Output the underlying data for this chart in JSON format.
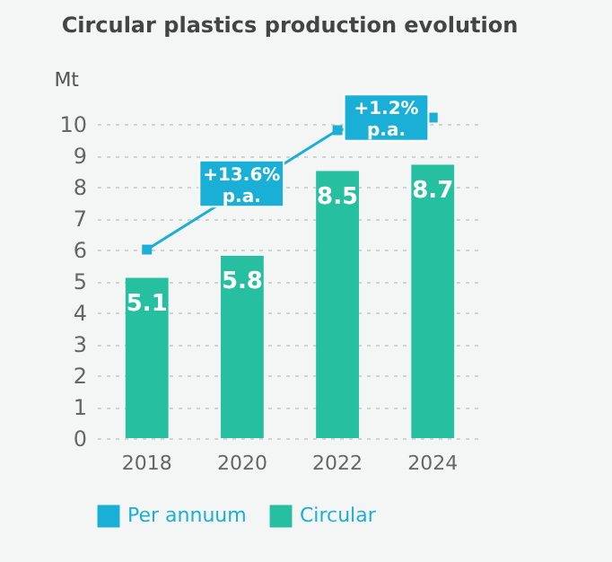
{
  "chart_data": {
    "type": "bar",
    "title": "Circular plastics production evolution",
    "ylabel": "Mt",
    "categories": [
      "2018",
      "2020",
      "2022",
      "2024"
    ],
    "series": [
      {
        "name": "Per annuum",
        "type": "line",
        "color": "#1aafd6",
        "values": [
          6.0,
          null,
          9.8,
          10.2
        ]
      },
      {
        "name": "Circular",
        "color": "#26bfa0",
        "values": [
          5.1,
          5.8,
          8.5,
          8.7
        ],
        "value_labels": [
          "5.1",
          "5.8",
          "8.5",
          "8.7"
        ]
      }
    ],
    "annotations": [
      "+13.6%\np.a.",
      "+1.2%\np.a."
    ],
    "ylim": [
      0,
      10.4
    ],
    "yticks": [
      0,
      1,
      2,
      3,
      4,
      5,
      6,
      7,
      8,
      9,
      10
    ],
    "grid": "y",
    "legend": "bottom",
    "marker": "square"
  }
}
